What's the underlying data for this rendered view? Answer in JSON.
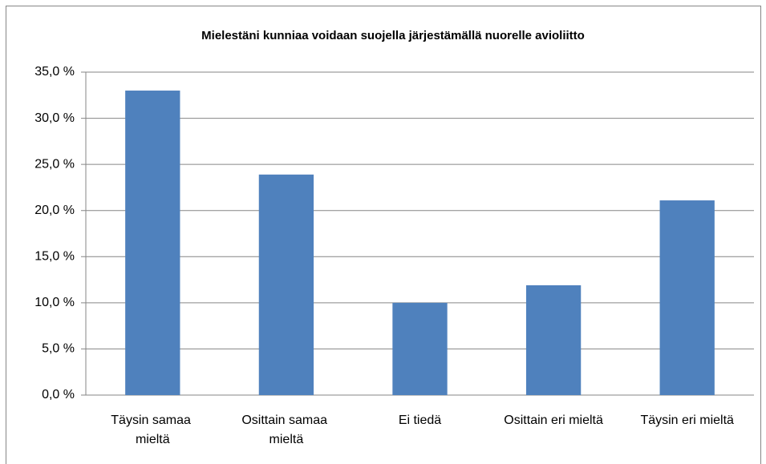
{
  "chart_data": {
    "type": "bar",
    "title": "Mielestäni kunniaa voidaan suojella järjestämällä nuorelle avioliitto",
    "categories": [
      "Täysin samaa mieltä",
      "Osittain samaa mieltä",
      "Ei tiedä",
      "Osittain eri mieltä",
      "Täysin eri mieltä"
    ],
    "values": [
      33.0,
      23.9,
      10.0,
      11.9,
      21.1
    ],
    "color": "#4f81bd",
    "ylim": [
      0,
      35
    ],
    "yticks": [
      {
        "value": 0,
        "label": "0,0 %"
      },
      {
        "value": 5,
        "label": "5,0 %"
      },
      {
        "value": 10,
        "label": "10,0 %"
      },
      {
        "value": 15,
        "label": "15,0 %"
      },
      {
        "value": 20,
        "label": "20,0 %"
      },
      {
        "value": 25,
        "label": "25,0 %"
      },
      {
        "value": 30,
        "label": "30,0 %"
      },
      {
        "value": 35,
        "label": "35,0 %"
      }
    ],
    "grid": true
  }
}
